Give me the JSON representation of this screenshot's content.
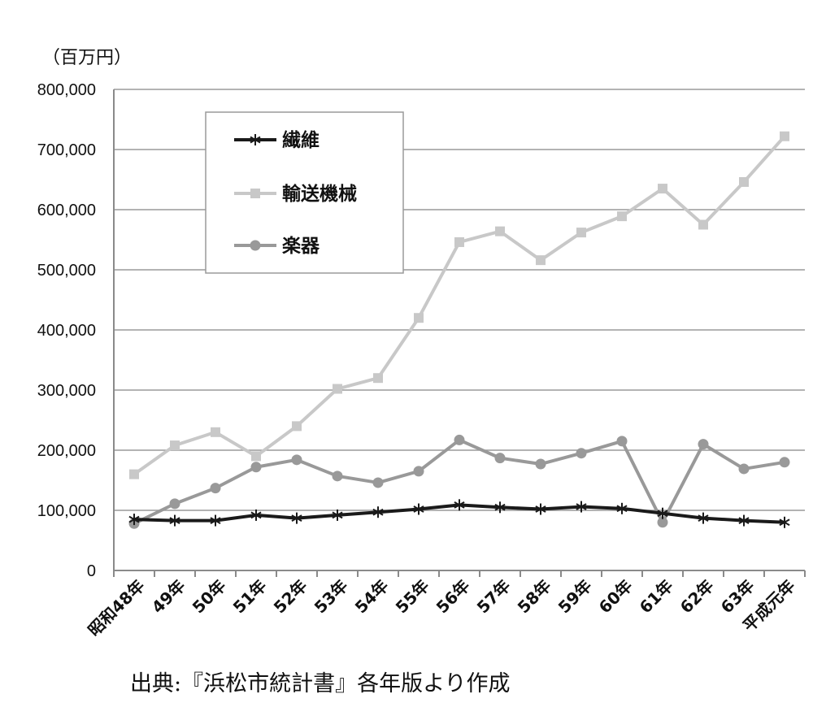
{
  "chart_data": {
    "type": "line",
    "y_unit_label": "（百万円）",
    "ylim": [
      0,
      800000
    ],
    "yticks": [
      0,
      100000,
      200000,
      300000,
      400000,
      500000,
      600000,
      700000,
      800000
    ],
    "ytick_labels": [
      "0",
      "100,000",
      "200,000",
      "300,000",
      "400,000",
      "500,000",
      "600,000",
      "700,000",
      "800,000"
    ],
    "grid": "horizontal",
    "legend_position": "top-left inside plot",
    "categories": [
      "昭和48年",
      "49年",
      "50年",
      "51年",
      "52年",
      "53年",
      "54年",
      "55年",
      "56年",
      "57年",
      "58年",
      "59年",
      "60年",
      "61年",
      "62年",
      "63年",
      "平成元年"
    ],
    "series": [
      {
        "name": "繊維",
        "color": "#1a1a1a",
        "marker": "asterisk",
        "values": [
          85000,
          83000,
          83000,
          92000,
          87000,
          92000,
          97000,
          102000,
          109000,
          105000,
          102000,
          106000,
          103000,
          95000,
          87000,
          83000,
          80000
        ]
      },
      {
        "name": "輸送機械",
        "color": "#c8c8c8",
        "marker": "square",
        "values": [
          160000,
          208000,
          230000,
          190000,
          240000,
          302000,
          320000,
          420000,
          546000,
          564000,
          516000,
          562000,
          589000,
          635000,
          575000,
          646000,
          722000
        ]
      },
      {
        "name": "楽器",
        "color": "#999999",
        "marker": "circle",
        "values": [
          78000,
          111000,
          137000,
          172000,
          184000,
          157000,
          146000,
          165000,
          217000,
          187000,
          177000,
          195000,
          215000,
          80000,
          210000,
          169000,
          180000
        ]
      }
    ]
  },
  "source_note": "出典:『浜松市統計書』各年版より作成"
}
